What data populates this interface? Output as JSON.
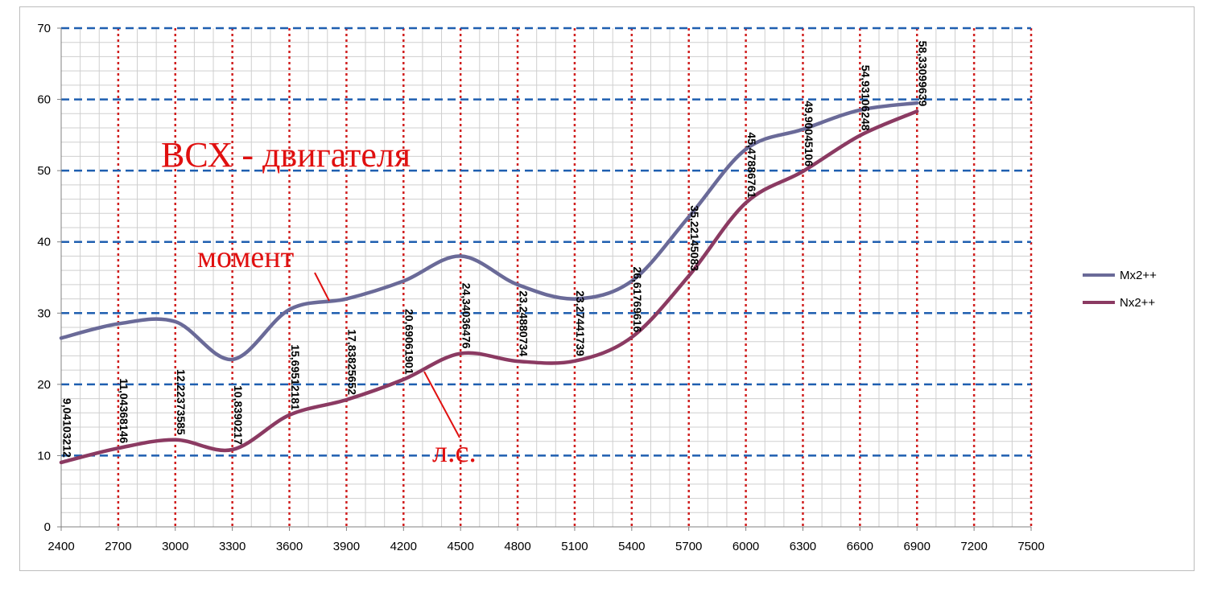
{
  "chart_data": {
    "type": "line",
    "title": "",
    "xlabel": "",
    "ylabel": "",
    "x": [
      2400,
      2700,
      3000,
      3300,
      3600,
      3900,
      4200,
      4500,
      4800,
      5100,
      5400,
      5700,
      6000,
      6300,
      6600,
      6900
    ],
    "x_ticks": [
      "2400",
      "2700",
      "3000",
      "3300",
      "3600",
      "3900",
      "4200",
      "4500",
      "4800",
      "5100",
      "5400",
      "5700",
      "6000",
      "6300",
      "6600",
      "6900",
      "7200",
      "7500"
    ],
    "y_ticks": [
      "0",
      "10",
      "20",
      "30",
      "40",
      "50",
      "60",
      "70"
    ],
    "xlim": [
      2400,
      7500
    ],
    "ylim": [
      0,
      70
    ],
    "grid": {
      "major_y": true,
      "minor_y": true,
      "vertical": true
    },
    "legend_position": "right",
    "series": [
      {
        "name": "Mx2++",
        "color": "#6a6a98",
        "values": [
          26.5,
          28.5,
          28.8,
          23.5,
          30.5,
          32.0,
          34.5,
          38.0,
          34.0,
          32.0,
          34.5,
          43.5,
          53.0,
          55.8,
          58.5,
          59.5
        ]
      },
      {
        "name": "Nx2++",
        "color": "#8b3a62",
        "values": [
          9.04103212,
          11.04368146,
          12.22373585,
          10.8390217,
          15.69512181,
          17.83825652,
          20.69061901,
          24.34036476,
          23.24880734,
          23.27441739,
          26.61769616,
          35.22145083,
          45.47886761,
          49.90045106,
          54.93106248,
          58.33099639
        ],
        "data_labels": [
          "9,04103212",
          "11,04368146",
          "12,22373585",
          "10,8390217",
          "15,69512181",
          "17,83825652",
          "20,69061901",
          "24,34036476",
          "23,24880734",
          "23,27441739",
          "26,61769616",
          "35,22145083",
          "45,47886761",
          "49,90045106",
          "54,93106248",
          "58,33099639"
        ]
      }
    ],
    "annotations": {
      "title_text": "ВСХ - двигателя",
      "moment_text": "момент",
      "hp_text": "л.с.",
      "color": "#e01010"
    },
    "colors": {
      "major_grid": "#1f5fb0",
      "vertical_grid": "#d02020",
      "minor_grid": "#cfcfcf"
    }
  }
}
